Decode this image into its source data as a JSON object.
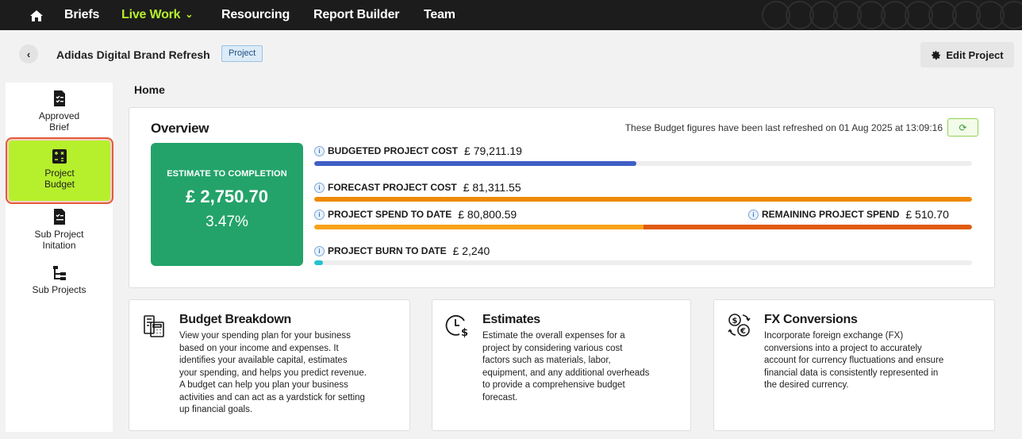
{
  "nav": {
    "items": [
      {
        "label": "Briefs"
      },
      {
        "label": "Live Work",
        "active": true
      },
      {
        "label": "Resourcing"
      },
      {
        "label": "Report Builder"
      },
      {
        "label": "Team"
      }
    ],
    "accent": "#b6f02c"
  },
  "header": {
    "project_title": "Adidas Digital Brand Refresh",
    "badge": "Project",
    "edit_label": "Edit Project"
  },
  "sidebar": {
    "items": [
      {
        "label_line1": "Approved",
        "label_line2": "Brief",
        "icon": "document-checklist-icon"
      },
      {
        "label_line1": "Project",
        "label_line2": "Budget",
        "icon": "calculator-icon",
        "active": true
      },
      {
        "label_line1": "Sub Project",
        "label_line2": "Initation",
        "icon": "document-list-icon"
      },
      {
        "label_line1": "Sub Projects",
        "label_line2": "",
        "icon": "hierarchy-icon"
      }
    ]
  },
  "main": {
    "section_title": "Home",
    "overview": {
      "title": "Overview",
      "refresh_text": "These Budget figures have been last refreshed on 01 Aug 2025 at 13:09:16",
      "etc_label": "ESTIMATE TO COMPLETION",
      "etc_value": "£ 2,750.70",
      "etc_percent": "3.47%",
      "metrics": {
        "budgeted": {
          "label": "BUDGETED PROJECT COST",
          "amount": "£ 79,211.19",
          "fill_fraction": 0.49,
          "color": "#3f5fc4"
        },
        "forecast": {
          "label": "FORECAST PROJECT COST",
          "amount": "£ 81,311.55",
          "fill_fraction": 1.0,
          "color": "#ef8a07"
        },
        "spend": {
          "label": "PROJECT SPEND TO DATE",
          "amount": "£ 80,800.59",
          "fill_fraction": 0.5,
          "color": "#f7a21b"
        },
        "remaining": {
          "label": "REMAINING PROJECT SPEND",
          "amount": "£ 510.70",
          "fill_fraction": 0.5,
          "color": "#e05a0c"
        },
        "burn": {
          "label": "PROJECT BURN TO DATE",
          "amount": "£ 2,240",
          "fill_fraction": 0.013,
          "color": "#21c3cf"
        }
      }
    },
    "cards": [
      {
        "title": "Budget Breakdown",
        "icon": "budget-calculator-icon",
        "body": [
          "View your spending plan for your business",
          "based on your income and expenses. It",
          "identifies your available capital, estimates",
          "your spending, and helps you predict revenue.",
          "A budget can help you plan your business",
          "activities and can act as a yardstick for setting",
          "up financial goals."
        ]
      },
      {
        "title": "Estimates",
        "icon": "clock-dollar-icon",
        "body": [
          "Estimate the overall expenses for a",
          "project by considering various cost",
          "factors such as materials, labor,",
          "equipment, and any additional overheads",
          "to provide a comprehensive budget",
          "forecast."
        ]
      },
      {
        "title": "FX Conversions",
        "icon": "currency-exchange-icon",
        "body": [
          "Incorporate foreign exchange (FX)",
          "conversions into a project to accurately",
          "account for currency fluctuations and ensure",
          "financial data is consistently represented in",
          "the desired currency."
        ]
      }
    ]
  }
}
